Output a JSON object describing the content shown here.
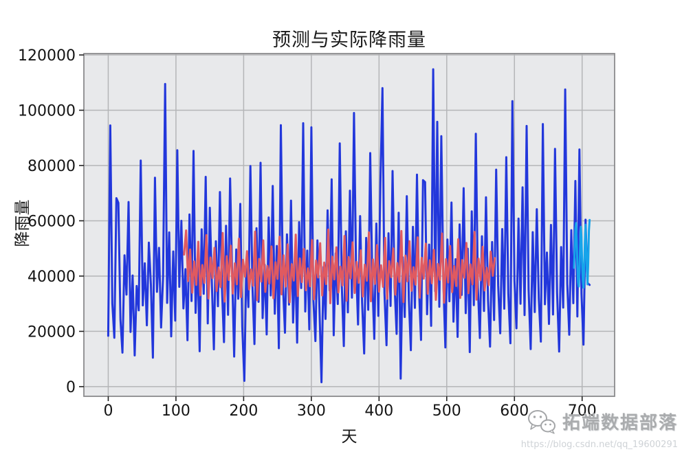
{
  "chart_data": {
    "type": "line",
    "title": "预测与实际降雨量",
    "xlabel": "天",
    "ylabel": "降雨量",
    "xlim": [
      -36,
      748
    ],
    "ylim": [
      -3500,
      120500
    ],
    "xticks": [
      0,
      100,
      200,
      300,
      400,
      500,
      600,
      700
    ],
    "yticks": [
      0,
      20000,
      40000,
      60000,
      80000,
      100000,
      120000
    ],
    "grid": true,
    "legend_position": "none",
    "plot_background": "#e8e9eb",
    "grid_color": "#b4b5b7",
    "spine_color": "#8a8b8d",
    "tick_color": "#141414",
    "series": [
      {
        "name": "blue-actual-rainfall",
        "color": "#2237db",
        "linewidth": 3,
        "x_start": 0,
        "x_step": 3,
        "values": [
          18400,
          94500,
          30100,
          17700,
          68200,
          66500,
          24300,
          12300,
          47500,
          33300,
          66800,
          19800,
          40200,
          11300,
          36400,
          27600,
          81800,
          29400,
          44600,
          22200,
          52100,
          36900,
          10500,
          75600,
          34300,
          50200,
          21400,
          39700,
          109500,
          30300,
          55800,
          18200,
          48900,
          23900,
          85500,
          36100,
          60000,
          28300,
          42500,
          16800,
          62300,
          31000,
          85300,
          26700,
          46400,
          12800,
          56900,
          33600,
          75900,
          22900,
          64700,
          38000,
          13500,
          52600,
          29100,
          70400,
          35200,
          16100,
          58200,
          26000,
          75300,
          41700,
          10900,
          49600,
          31800,
          66100,
          21600,
          2100,
          45000,
          28800,
          79800,
          36600,
          15400,
          57300,
          30700,
          81000,
          24800,
          44100,
          18900,
          61200,
          33000,
          72600,
          26400,
          50900,
          13900,
          94600,
          37400,
          19500,
          55100,
          29700,
          67300,
          23200,
          47000,
          15900,
          59500,
          35700,
          95300,
          27200,
          49200,
          20700,
          93800,
          31400,
          16500,
          52900,
          28000,
          1600,
          43300,
          24500,
          63800,
          34800,
          75000,
          18600,
          48200,
          29900,
          88000,
          36300,
          14700,
          56200,
          26900,
          70900,
          32200,
          99000,
          44800,
          22500,
          61700,
          30500,
          12000,
          53800,
          27800,
          84500,
          38800,
          17300,
          59000,
          25600,
          73500,
          108000,
          33900,
          15000,
          55500,
          29200,
          78000,
          36000,
          19100,
          62900,
          2900,
          46800,
          25200,
          68900,
          31600,
          13200,
          57800,
          28500,
          76700,
          35400,
          16900,
          74700,
          74000,
          26200,
          51400,
          22000,
          114800,
          34500,
          95800,
          28900,
          90600,
          37800,
          14200,
          53200,
          30900,
          66600,
          23500,
          46100,
          18000,
          58700,
          33200,
          71800,
          26600,
          49900,
          12500,
          63400,
          29500,
          91500,
          35900,
          17600,
          54400,
          27400,
          68500,
          31200,
          14500,
          52300,
          24100,
          78500,
          36700,
          19300,
          57000,
          28200,
          83000,
          33500,
          15700,
          103300,
          38400,
          21100,
          60800,
          30000,
          72100,
          25900,
          94300,
          35000,
          13600,
          55900,
          27000,
          64200,
          31900,
          16300,
          95000,
          29800,
          48500,
          22700,
          58500,
          26100,
          86000,
          34000,
          12700,
          50500,
          28600,
          107500,
          37200,
          18800,
          56600,
          30200,
          74400,
          25400,
          85800,
          33700,
          15200,
          60400,
          37500,
          36800
        ]
      },
      {
        "name": "red-fitted-rainfall",
        "color": "#e05a60",
        "linewidth": 3,
        "x_start": 112,
        "x_step": 3,
        "values": [
          47800,
          56500,
          38200,
          49600,
          34000,
          45300,
          36800,
          52400,
          33100,
          44000,
          37500,
          54800,
          31900,
          46700,
          39300,
          50200,
          34600,
          43100,
          36000,
          55600,
          30800,
          47200,
          38600,
          51000,
          33700,
          44600,
          37000,
          53500,
          32400,
          45900,
          39800,
          49000,
          35200,
          42400,
          36500,
          56100,
          31300,
          46200,
          38000,
          52900,
          34300,
          43700,
          37300,
          50700,
          32000,
          45000,
          39000,
          54200,
          33400,
          47500,
          36200,
          51500,
          30500,
          44300,
          38400,
          55000,
          32800,
          46400,
          37800,
          49800,
          34900,
          42800,
          36300,
          53000,
          31600,
          45600,
          39500,
          51900,
          33000,
          44900,
          37100,
          56800,
          30200,
          47000,
          38800,
          50400,
          34100,
          43400,
          36600,
          54500,
          31100,
          46900,
          39200,
          52200,
          33900,
          45100,
          37600,
          49300,
          32600,
          44100,
          38300,
          55800,
          30900,
          46000,
          37200,
          51200,
          34400,
          43900,
          36100,
          53800,
          31800,
          45400,
          39600,
          50000,
          33300,
          44700,
          37900,
          56300,
          30600,
          47400,
          38100,
          52600,
          34700,
          43200,
          36900,
          54000,
          32200,
          46600,
          39100,
          51700,
          33600,
          45700,
          37400,
          49500,
          31400,
          44400,
          38700,
          55400,
          30400,
          46100,
          37700,
          50900,
          34200,
          43600,
          36400,
          53300,
          32100,
          45800,
          39400,
          52000,
          33800,
          44200,
          37000,
          56000,
          31500,
          46300,
          38500,
          50600,
          34800,
          43000,
          36700,
          48800,
          40100,
          46500
        ]
      },
      {
        "name": "cyan-forecast-rainfall",
        "color": "#16a4ea",
        "linewidth": 3,
        "x_start": 688,
        "x_step": 1,
        "values": [
          43000,
          49500,
          57000,
          59200,
          52500,
          44000,
          37800,
          36200,
          41500,
          50800,
          57800,
          54000,
          45500,
          38400,
          35800,
          42600,
          52200,
          58600,
          51000,
          42200,
          37000,
          44800,
          56400,
          60300
        ]
      }
    ]
  },
  "watermark": {
    "brand": "拓端数据部落",
    "url": "https://blog.csdn.net/qq_19600291",
    "icon": "wechat-icon"
  }
}
